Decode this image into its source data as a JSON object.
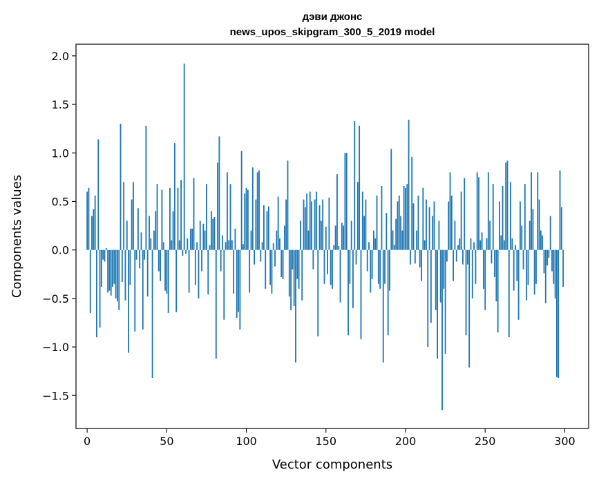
{
  "chart_data": {
    "type": "bar",
    "title": "дэви джонс",
    "subtitle": "news_upos_skipgram_300_5_2019 model",
    "xlabel": "Vector components",
    "ylabel": "Components values",
    "xlim": [
      -7,
      315
    ],
    "ylim": [
      -1.84,
      2.12
    ],
    "xticks": [
      0,
      50,
      100,
      150,
      200,
      250,
      300
    ],
    "yticks": [
      -1.5,
      -1.0,
      -0.5,
      0.0,
      0.5,
      1.0,
      1.5,
      2.0
    ],
    "xtick_labels": [
      "0",
      "50",
      "100",
      "150",
      "200",
      "250",
      "300"
    ],
    "ytick_labels": [
      "−1.5",
      "−1.0",
      "−0.5",
      "0.0",
      "0.5",
      "1.0",
      "1.5",
      "2.0"
    ],
    "bar_color": "#1f77b4",
    "grid": false,
    "x_start": 0,
    "values": [
      0.6,
      0.64,
      -0.65,
      0.35,
      0.42,
      0.56,
      -0.9,
      1.14,
      -0.8,
      -0.38,
      -0.1,
      -0.12,
      0.02,
      -0.44,
      -0.42,
      -0.47,
      -0.38,
      -0.35,
      -0.5,
      -0.53,
      -0.62,
      1.3,
      -0.33,
      0.7,
      -0.52,
      0.3,
      -1.06,
      -0.36,
      0.52,
      0.7,
      -0.84,
      -0.1,
      0.43,
      -0.19,
      0.18,
      -0.82,
      -0.1,
      1.28,
      -0.48,
      0.35,
      0.12,
      -1.32,
      0.2,
      0.4,
      0.68,
      -0.22,
      -0.32,
      0.62,
      0.08,
      -0.42,
      -0.45,
      -0.65,
      0.64,
      0.1,
      0.4,
      1.1,
      -0.64,
      0.64,
      0.1,
      0.72,
      -0.06,
      1.92,
      -0.04,
      0.12,
      -0.44,
      0.22,
      0.22,
      0.74,
      -0.36,
      0.08,
      -0.5,
      0.3,
      -0.22,
      0.27,
      0.2,
      0.68,
      -0.46,
      0.05,
      0.4,
      0.32,
      0.34,
      -1.12,
      0.9,
      1.17,
      -0.22,
      0.15,
      -0.72,
      0.08,
      0.8,
      0.1,
      0.68,
      0.1,
      -0.45,
      0.22,
      -0.7,
      -0.64,
      -0.82,
      1.02,
      0.06,
      0.58,
      0.64,
      0.62,
      -0.44,
      0.2,
      0.85,
      -0.15,
      0.52,
      0.8,
      0.82,
      -0.12,
      0.08,
      0.46,
      -0.4,
      0.4,
      0.45,
      -0.36,
      -0.45,
      0.07,
      -0.17,
      0.2,
      0.55,
      0.12,
      -0.28,
      -0.3,
      0.25,
      0.52,
      0.92,
      -0.48,
      -0.62,
      -0.2,
      -0.58,
      -1.16,
      -0.3,
      -0.4,
      0.3,
      -0.52,
      0.52,
      0.44,
      0.58,
      0.2,
      0.6,
      0.5,
      -0.2,
      0.52,
      0.6,
      -0.89,
      0.46,
      0.3,
      0.52,
      -0.35,
      0.24,
      -0.25,
      0.54,
      -0.36,
      -0.4,
      0.05,
      0.25,
      0.78,
      0.04,
      -0.54,
      0.28,
      0.25,
      1.0,
      1.0,
      -0.88,
      -0.35,
      0.3,
      -0.6,
      1.33,
      -0.15,
      0.7,
      1.28,
      -0.92,
      0.6,
      0.35,
      0.52,
      -0.22,
      0.08,
      -0.44,
      -0.3,
      0.2,
      0.12,
      0.56,
      -0.35,
      -0.4,
      0.66,
      -1.16,
      -0.35,
      0.38,
      -0.88,
      -0.42,
      1.04,
      0.2,
      0.05,
      0.32,
      0.5,
      0.56,
      0.35,
      0.2,
      0.66,
      0.64,
      0.68,
      1.34,
      -0.15,
      0.96,
      0.48,
      -0.14,
      0.2,
      0.56,
      -0.18,
      -0.32,
      0.64,
      0.1,
      0.52,
      -1.0,
      0.44,
      -0.75,
      0.35,
      0.5,
      -0.62,
      -1.12,
      0.3,
      -0.54,
      -1.65,
      -0.4,
      -1.07,
      -0.12,
      0.5,
      0.8,
      0.56,
      -0.32,
      0.3,
      -0.12,
      0.05,
      0.12,
      0.6,
      -0.15,
      0.74,
      -0.88,
      -0.15,
      -1.21,
      0.12,
      -0.5,
      0.08,
      -0.35,
      0.8,
      0.75,
      0.1,
      0.18,
      -0.4,
      -0.62,
      0.12,
      0.8,
      0.3,
      -0.14,
      0.68,
      -0.28,
      -0.53,
      -0.85,
      0.5,
      0.15,
      0.66,
      0.1,
      0.9,
      0.92,
      -0.9,
      0.7,
      0.12,
      -0.42,
      0.05,
      -0.32,
      -0.72,
      0.5,
      0.25,
      -0.2,
      0.68,
      -0.52,
      -0.36,
      0.3,
      0.8,
      0.42,
      -0.46,
      -0.35,
      0.8,
      0.52,
      0.2,
      0.15,
      -0.24,
      -0.55,
      -0.16,
      -0.08,
      0.35,
      -0.22,
      -0.35,
      -0.5,
      -1.31,
      -1.32,
      0.82,
      0.44,
      -0.38
    ]
  }
}
